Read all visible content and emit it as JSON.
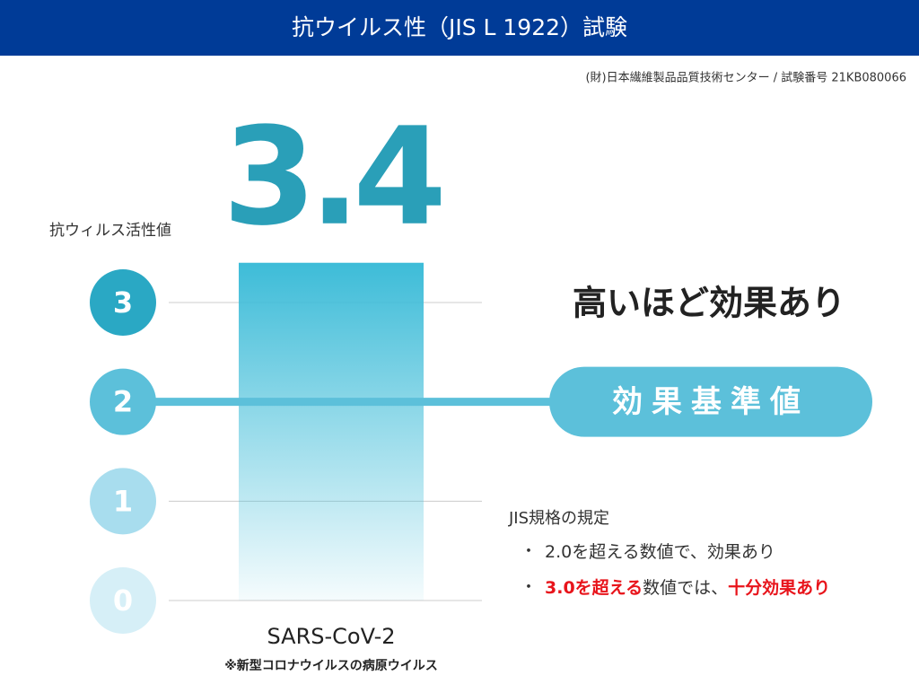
{
  "chart_data": {
    "type": "bar",
    "title": "抗ウイルス性（JIS L 1922）試験",
    "subtitle": "(財)日本繊維製品品質技術センター  /  試験番号  21KB080066",
    "y_label": "抗ウィルス活性値",
    "categories": [
      "SARS-CoV-2"
    ],
    "category_note": "※新型コロナウイルスの病原ウイルス",
    "values": [
      3.4
    ],
    "color": "#3dbcd8",
    "value_label_color": "#2a9fb8",
    "ylim": [
      0,
      3
    ],
    "yticks": [
      0,
      1,
      2,
      3
    ],
    "tick_colors": [
      "#d6eff7",
      "#a8ddee",
      "#5cc0da",
      "#2aa8c4"
    ],
    "grid": true,
    "annotation": "高いほど効果あり",
    "threshold": 2,
    "threshold_label": "効果基準値",
    "threshold_color": "#5cc0da",
    "notes": {
      "heading": "JIS規格の規定",
      "items": [
        {
          "bullet": "・",
          "parts": [
            {
              "text": "2.0を超える数値で、効果あり",
              "color": "#333333"
            }
          ]
        },
        {
          "bullet": "・",
          "parts": [
            {
              "text": "3.0を超える",
              "color": "#e8141b"
            },
            {
              "text": "数値では、",
              "color": "#333333"
            },
            {
              "text": "十分効果あり",
              "color": "#e8141b"
            }
          ]
        }
      ]
    }
  }
}
